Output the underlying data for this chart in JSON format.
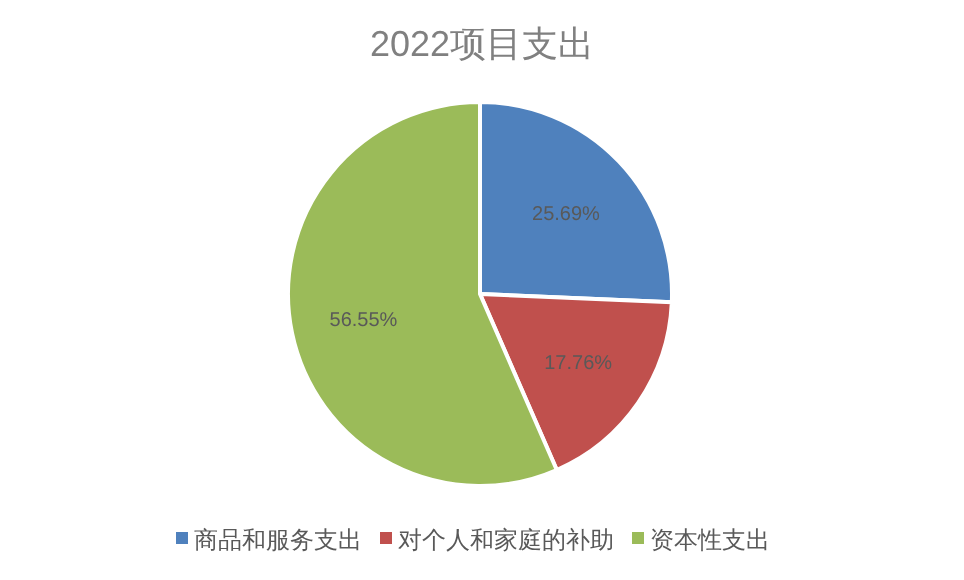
{
  "chart_data": {
    "type": "pie",
    "title": "2022项目支出",
    "categories": [
      "商品和服务支出",
      "对个人和家庭的补助",
      "资本性支出"
    ],
    "values": [
      25.69,
      17.76,
      56.55
    ],
    "colors": [
      "#4f81bd",
      "#c0504d",
      "#9bbb59"
    ],
    "value_labels": [
      "25.69%",
      "17.76%",
      "56.55%"
    ],
    "legend": "bottom"
  }
}
